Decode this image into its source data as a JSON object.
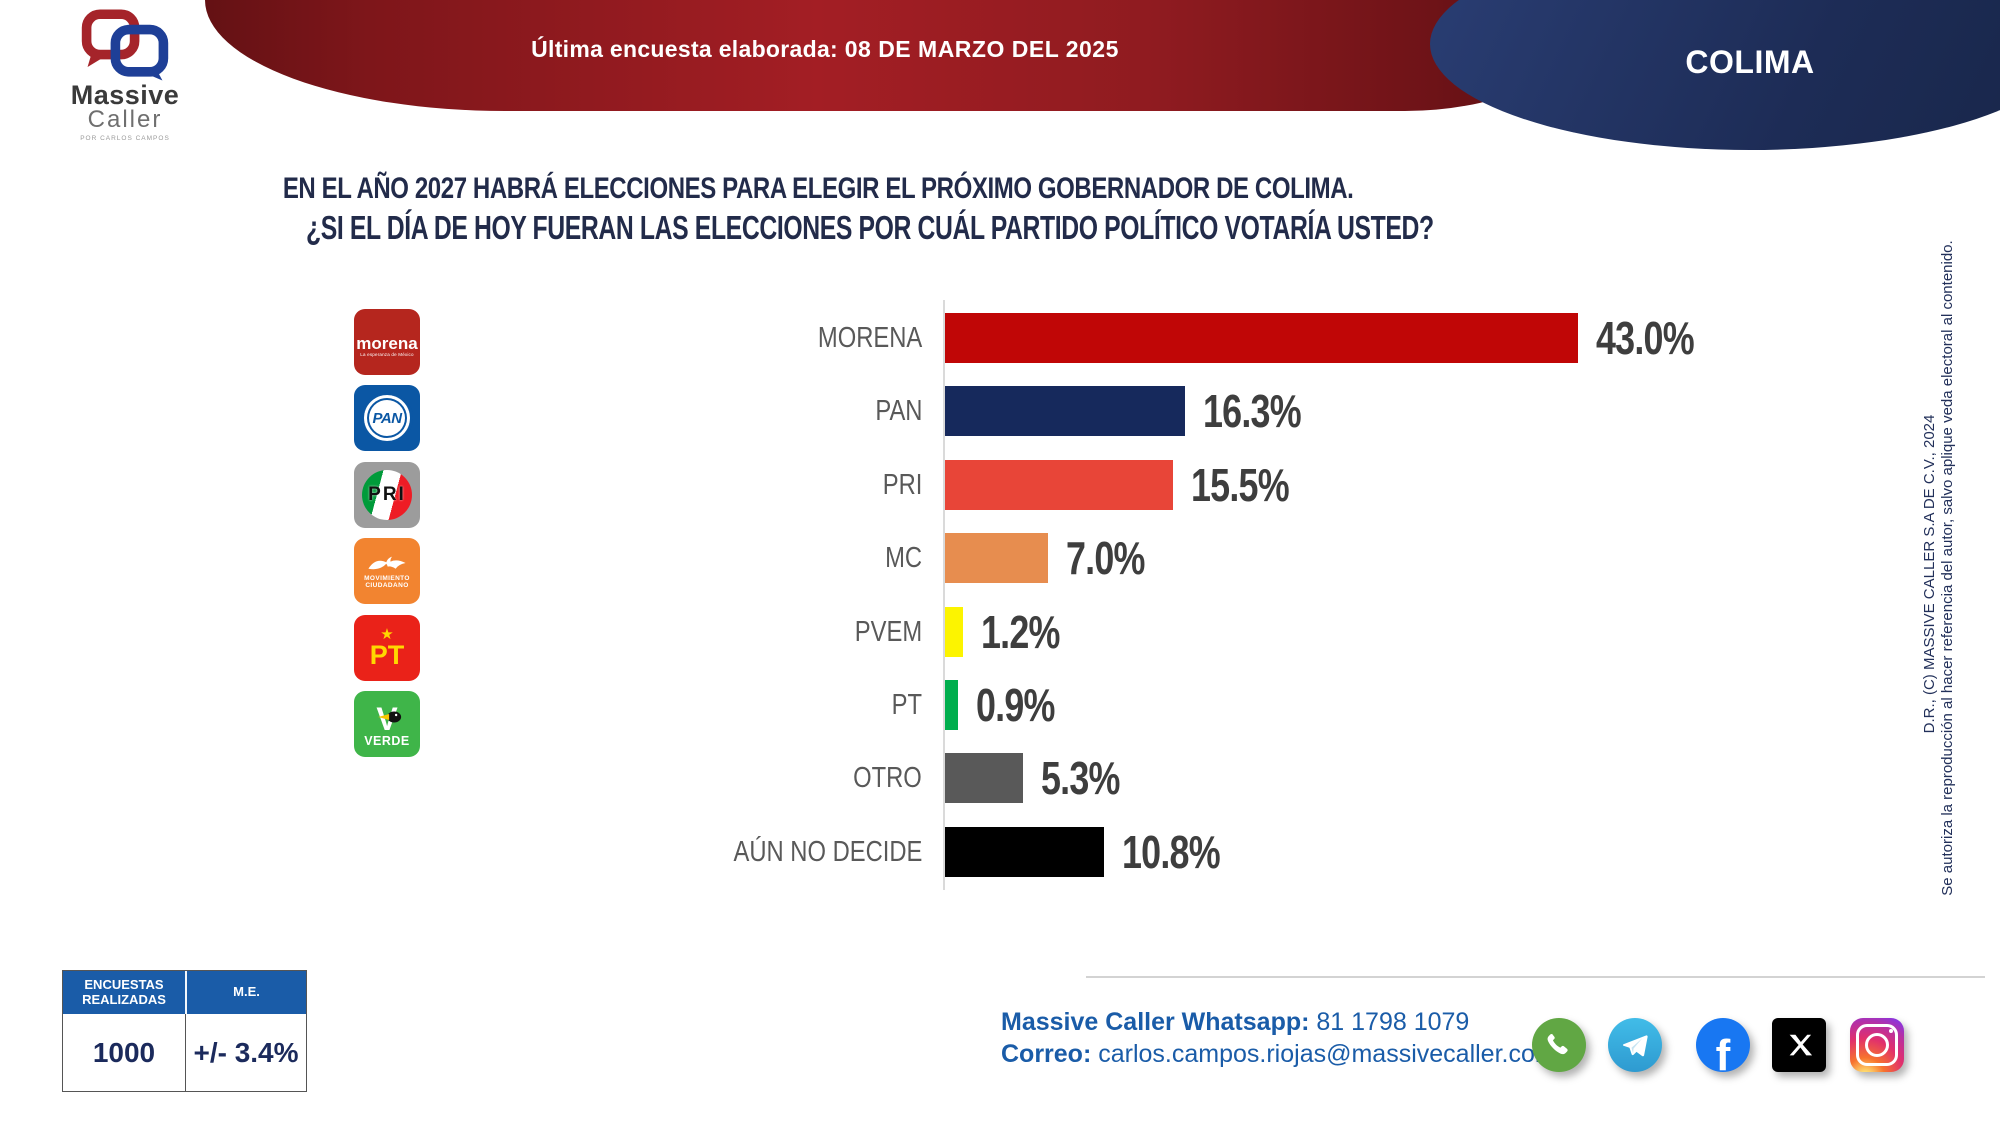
{
  "brand": {
    "name_top": "Massive",
    "name_bottom": "Caller",
    "tagline": "POR CARLOS CAMPOS"
  },
  "header": {
    "banner_label": "Última encuesta elaborada:",
    "banner_date": "08 DE MARZO DEL 2025",
    "region": "COLIMA"
  },
  "title": {
    "line1": "EN EL AÑO 2027 HABRÁ ELECCIONES PARA ELEGIR EL PRÓXIMO GOBERNADOR DE COLIMA.",
    "line2": "¿SI EL DÍA DE HOY FUERAN LAS ELECCIONES POR CUÁL PARTIDO POLÍTICO VOTARÍA USTED?"
  },
  "party_logos": [
    {
      "id": "morena",
      "text": "morena",
      "tagline": "La esperanza de México",
      "bg": "#B5261E"
    },
    {
      "id": "pan",
      "text": "PAN",
      "bg": "#0B57A4"
    },
    {
      "id": "pri",
      "text": "PRI",
      "bg": "#9C9C9C"
    },
    {
      "id": "mc",
      "line1": "MOVIMIENTO",
      "line2": "CIUDADANO",
      "bg": "#F28430"
    },
    {
      "id": "pt",
      "text": "PT",
      "star": "★",
      "bg": "#EA2219"
    },
    {
      "id": "verde",
      "text": "VERDE",
      "letter": "V",
      "bg": "#3FB549"
    }
  ],
  "chart_data": {
    "type": "bar",
    "orientation": "horizontal",
    "categories": [
      "MORENA",
      "PAN",
      "PRI",
      "MC",
      "PVEM",
      "PT",
      "OTRO",
      "AÚN NO DECIDE"
    ],
    "values": [
      43.0,
      16.3,
      15.5,
      7.0,
      1.2,
      0.9,
      5.3,
      10.8
    ],
    "labels": [
      "43.0%",
      "16.3%",
      "15.5%",
      "7.0%",
      "1.2%",
      "0.9%",
      "5.3%",
      "10.8%"
    ],
    "colors": [
      "#C00606",
      "#16295C",
      "#E84538",
      "#E78D4F",
      "#FCF400",
      "#00AE4D",
      "#595959",
      "#000000"
    ],
    "xlim": [
      0,
      45
    ],
    "grid": false,
    "value_label_position": "outside-end",
    "title": "",
    "xlabel": "",
    "ylabel": ""
  },
  "stats_table": {
    "col1_header": "ENCUESTAS REALIZADAS",
    "col2_header": "M.E.",
    "col1_value": "1000",
    "col2_value": "+/- 3.4%"
  },
  "contact": {
    "whatsapp_label": "Massive Caller Whatsapp:",
    "whatsapp_value": " 81 1798 1079",
    "email_label": "Correo:",
    "email_value": " carlos.campos.riojas@massivecaller.com"
  },
  "social": [
    "whatsapp",
    "telegram",
    "facebook",
    "x-twitter",
    "instagram"
  ],
  "legal": {
    "copyright": "D.R., (C) MASSIVE CALLER S.A DE C.V., 2024",
    "notice": "Se autoriza la reproducción al hacer referencia del autor, salvo aplique veda electoral al contenido."
  },
  "theme": {
    "banner_red": "#A31E24",
    "banner_navy": "#1D2C56",
    "link_blue": "#1A5CA8",
    "title_navy": "#222B4A",
    "axis_gray": "#DADADA"
  }
}
